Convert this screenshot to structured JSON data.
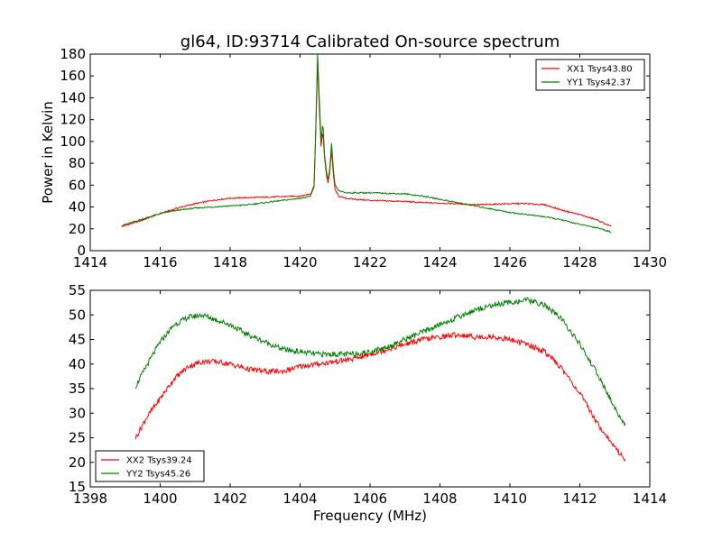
{
  "chart_data": [
    {
      "type": "line",
      "title": "gl64, ID:93714 Calibrated On-source spectrum",
      "xlabel": "",
      "ylabel": "Power in Kelvin",
      "xlim": [
        1414,
        1430
      ],
      "ylim": [
        0,
        180
      ],
      "xticks": [
        1414,
        1416,
        1418,
        1420,
        1422,
        1424,
        1426,
        1428,
        1430
      ],
      "yticks": [
        0,
        20,
        40,
        60,
        80,
        100,
        120,
        140,
        160,
        180
      ],
      "legend_position": "top-right",
      "grid": false,
      "series": [
        {
          "name": "XX1 Tsys43.80",
          "color": "#ff0000",
          "x": [
            1414.9,
            1415.5,
            1416.0,
            1416.5,
            1417.0,
            1417.5,
            1418.0,
            1418.5,
            1419.0,
            1419.5,
            1420.0,
            1420.3,
            1420.4,
            1420.45,
            1420.5,
            1420.55,
            1420.6,
            1420.65,
            1420.7,
            1420.75,
            1420.8,
            1420.85,
            1420.9,
            1420.95,
            1421.0,
            1421.1,
            1421.3,
            1421.6,
            1422.0,
            1422.5,
            1423.0,
            1423.5,
            1424.0,
            1424.5,
            1425.0,
            1425.5,
            1426.0,
            1426.5,
            1427.0,
            1427.5,
            1428.0,
            1428.5,
            1428.9
          ],
          "y": [
            22,
            28,
            34,
            39,
            43,
            46,
            48,
            48.5,
            49,
            49.5,
            50,
            52,
            60,
            110,
            172,
            130,
            95,
            110,
            85,
            70,
            62,
            72,
            92,
            70,
            56,
            50,
            48,
            47,
            46,
            45.5,
            45,
            44,
            43.5,
            43,
            42,
            42.5,
            43,
            43,
            42,
            37,
            33,
            28,
            22
          ]
        },
        {
          "name": "YY1 Tsys42.37",
          "color": "#008000",
          "x": [
            1414.9,
            1415.5,
            1416.0,
            1416.5,
            1417.0,
            1417.5,
            1418.0,
            1418.5,
            1419.0,
            1419.5,
            1420.0,
            1420.3,
            1420.4,
            1420.45,
            1420.5,
            1420.55,
            1420.6,
            1420.65,
            1420.7,
            1420.75,
            1420.8,
            1420.85,
            1420.9,
            1420.95,
            1421.0,
            1421.1,
            1421.3,
            1421.6,
            1422.0,
            1422.5,
            1423.0,
            1423.5,
            1424.0,
            1424.5,
            1425.0,
            1425.5,
            1426.0,
            1426.5,
            1427.0,
            1427.5,
            1428.0,
            1428.5,
            1428.9
          ],
          "y": [
            23,
            29,
            34,
            37,
            39,
            40,
            41,
            42,
            44,
            46,
            48,
            50,
            58,
            115,
            180,
            140,
            100,
            118,
            88,
            73,
            65,
            75,
            98,
            75,
            60,
            55,
            53,
            53,
            53,
            52.5,
            52,
            50,
            47,
            44,
            41,
            38,
            35,
            33,
            31,
            28,
            24,
            21,
            17
          ]
        }
      ]
    },
    {
      "type": "line",
      "title": "",
      "xlabel": "Frequency (MHz)",
      "ylabel": "",
      "xlim": [
        1398,
        1414
      ],
      "ylim": [
        15,
        55
      ],
      "xticks": [
        1398,
        1400,
        1402,
        1404,
        1406,
        1408,
        1410,
        1412,
        1414
      ],
      "yticks": [
        15,
        20,
        25,
        30,
        35,
        40,
        45,
        50,
        55
      ],
      "legend_position": "bottom-left",
      "grid": false,
      "series": [
        {
          "name": "XX2 Tsys39.24",
          "color": "#ff0000",
          "x": [
            1399.3,
            1399.6,
            1400.0,
            1400.4,
            1400.8,
            1401.2,
            1401.6,
            1402.0,
            1402.5,
            1403.0,
            1403.5,
            1404.0,
            1404.5,
            1405.0,
            1405.5,
            1406.0,
            1406.5,
            1407.0,
            1407.5,
            1408.0,
            1408.5,
            1409.0,
            1409.5,
            1410.0,
            1410.5,
            1411.0,
            1411.5,
            1412.0,
            1412.5,
            1413.0,
            1413.3
          ],
          "y": [
            25,
            29,
            33,
            37,
            39.5,
            40.5,
            40.5,
            40,
            39,
            38.5,
            38.5,
            39.5,
            40,
            40.5,
            41,
            42,
            43,
            44,
            45,
            45.5,
            46,
            45.5,
            45.5,
            45,
            44,
            42.5,
            39,
            34,
            28,
            23,
            20.5
          ]
        },
        {
          "name": "YY2 Tsys45.26",
          "color": "#008000",
          "x": [
            1399.3,
            1399.6,
            1400.0,
            1400.4,
            1400.8,
            1401.2,
            1401.6,
            1402.0,
            1402.5,
            1403.0,
            1403.5,
            1404.0,
            1404.5,
            1405.0,
            1405.5,
            1406.0,
            1406.5,
            1407.0,
            1407.5,
            1408.0,
            1408.5,
            1409.0,
            1409.5,
            1410.0,
            1410.5,
            1411.0,
            1411.5,
            1412.0,
            1412.5,
            1413.0,
            1413.3
          ],
          "y": [
            35.5,
            39.5,
            44.5,
            48,
            49.5,
            50,
            49,
            48,
            46,
            44.5,
            43,
            42.5,
            42,
            42,
            42,
            42.5,
            43.5,
            45,
            46.5,
            48,
            49.5,
            51,
            52,
            52.5,
            53,
            52,
            49,
            44,
            38,
            31,
            27.5
          ]
        }
      ]
    }
  ]
}
